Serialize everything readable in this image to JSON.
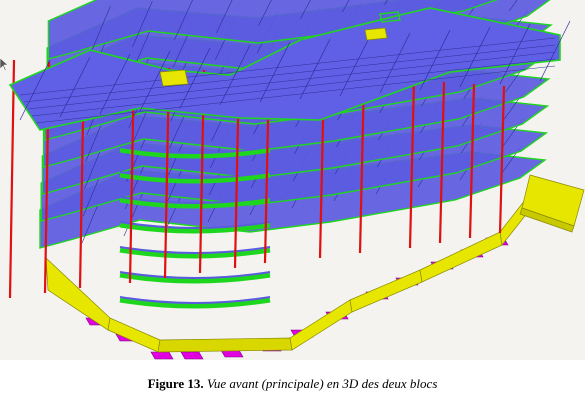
{
  "figure": {
    "label": "Figure 13.",
    "caption": "Vue avant (principale) en 3D des deux blocs"
  },
  "colors": {
    "background": "#f4f3ef",
    "slab_top": "#5b5be0",
    "slab_edge": "#2e2e9a",
    "slab_outline": "#1fd61f",
    "column": "#e01010",
    "foundation": "#e6e600",
    "footing": "#e000e0"
  },
  "icons": [
    "mouse-cursor-icon"
  ]
}
